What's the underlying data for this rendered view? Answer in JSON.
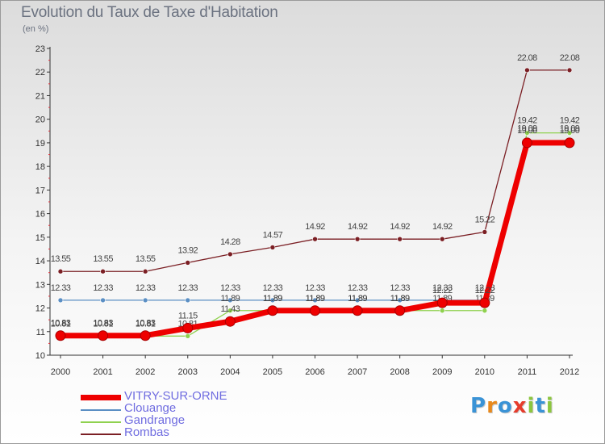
{
  "chart_data": {
    "type": "line",
    "title": "Evolution du Taux de Taxe d'Habitation",
    "subtitle": "(en %)",
    "categories": [
      "2000",
      "2001",
      "2002",
      "2003",
      "2004",
      "2005",
      "2006",
      "2007",
      "2008",
      "2009",
      "2010",
      "2011",
      "2012"
    ],
    "ylim": [
      10,
      23
    ],
    "yticks": [
      "10",
      "11",
      "12",
      "13",
      "14",
      "15",
      "16",
      "17",
      "18",
      "19",
      "20",
      "21",
      "22",
      "23"
    ],
    "grid": false,
    "legend_position": "bottom-left",
    "series": [
      {
        "name": "Rombas",
        "color": "#7b1f24",
        "values": [
          13.55,
          13.55,
          13.55,
          13.92,
          14.28,
          14.57,
          14.92,
          14.92,
          14.92,
          14.92,
          15.22,
          22.08,
          22.08
        ],
        "labels": [
          "13.55",
          "13.55",
          "13.55",
          "13.92",
          "14.28",
          "14.57",
          "14.92",
          "14.92",
          "14.92",
          "14.92",
          "15.22",
          "22.08",
          "22.08"
        ]
      },
      {
        "name": "Clouange",
        "color": "#5b8fc4",
        "values": [
          12.33,
          12.33,
          12.33,
          12.33,
          12.33,
          12.33,
          12.33,
          12.33,
          12.33,
          12.33,
          12.33,
          19.09,
          19.09
        ],
        "labels": [
          "12.33",
          "12.33",
          "12.33",
          "12.33",
          "12.33",
          "12.33",
          "12.33",
          "12.33",
          "12.33",
          "12.33",
          "12.33",
          "19.09",
          "19.09"
        ]
      },
      {
        "name": "Gandrange",
        "color": "#8fd14f",
        "values": [
          10.81,
          10.81,
          10.81,
          10.81,
          11.89,
          11.89,
          11.89,
          11.89,
          11.89,
          11.89,
          11.89,
          19.42,
          19.42
        ],
        "labels": [
          "10.81",
          "10.81",
          "10.81",
          "10.81",
          "11.89",
          "11.89",
          "11.89",
          "11.89",
          "11.89",
          "11.89",
          "11.89",
          "19.42",
          "19.42"
        ]
      },
      {
        "name": "VITRY-SUR-ORNE",
        "color": "#ee0000",
        "values": [
          10.83,
          10.83,
          10.83,
          11.15,
          11.43,
          11.89,
          11.89,
          11.89,
          11.89,
          12.22,
          12.22,
          19.0,
          19.0
        ],
        "labels": [
          "10.83",
          "10.83",
          "10.83",
          "11.15",
          "11.43",
          "11.89",
          "11.89",
          "11.89",
          "11.89",
          "12.22",
          "12.22",
          "19.00",
          "19.00"
        ]
      }
    ]
  },
  "legend": [
    {
      "name": "VITRY-SUR-ORNE",
      "color": "#ee0000",
      "label_color": "#6f6ce0"
    },
    {
      "name": "Clouange",
      "color": "#5b8fc4",
      "label_color": "#6f6ce0"
    },
    {
      "name": "Gandrange",
      "color": "#8fd14f",
      "label_color": "#6f6ce0"
    },
    {
      "name": "Rombas",
      "color": "#7b1f24",
      "label_color": "#6f6ce0"
    }
  ],
  "logo": {
    "text": "Proxiti",
    "letters": [
      "P",
      "r",
      "o",
      "x",
      "i",
      "t",
      "i"
    ],
    "colors": [
      "#3a93d6",
      "#e8891c",
      "#3a93d6",
      "#e63c2c",
      "#8cc63f",
      "#3a93d6",
      "#8cc63f"
    ]
  }
}
